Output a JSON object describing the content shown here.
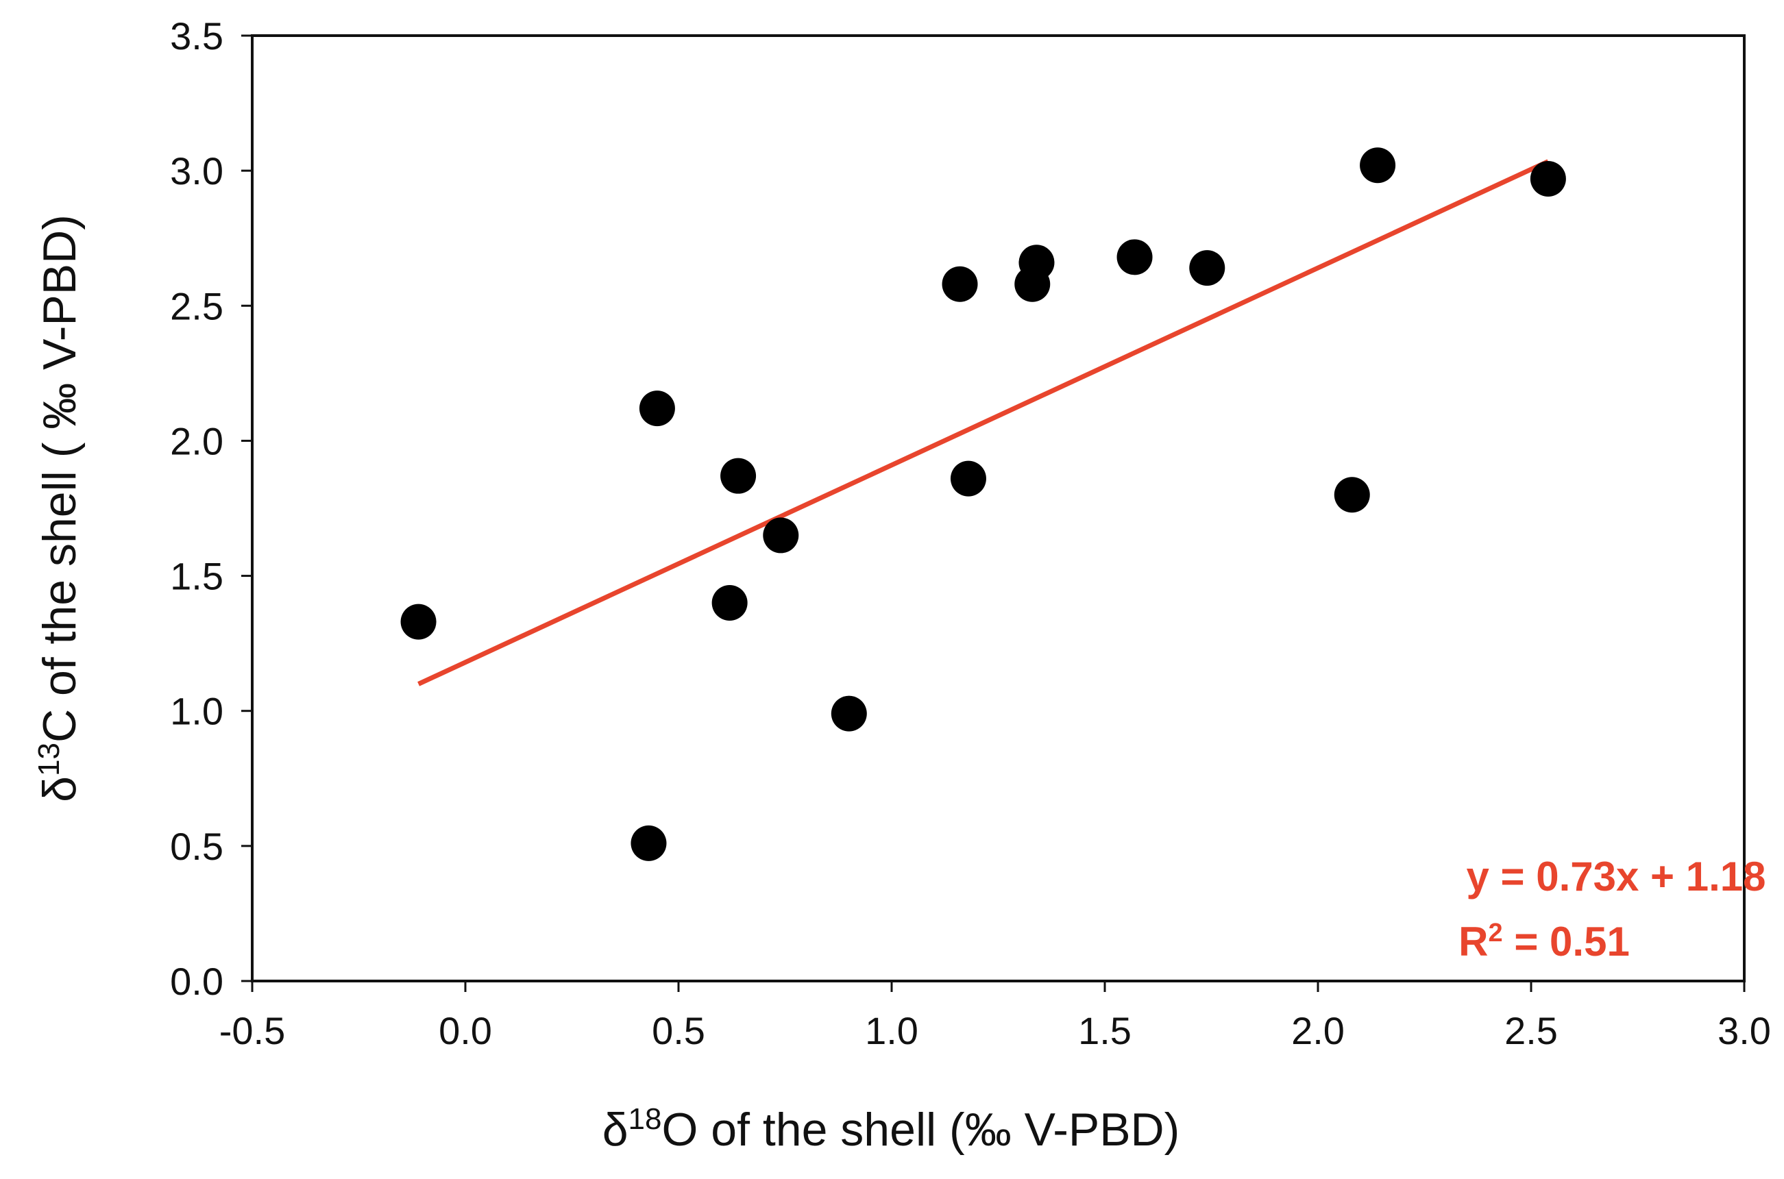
{
  "chart_data": {
    "type": "scatter",
    "xlabel": {
      "prefix": "δ",
      "sup": "18",
      "main": "O  of the shell (‰ V-PBD)"
    },
    "ylabel": {
      "prefix": "δ",
      "sup": "13",
      "main": "C of the shell ( ‰ V-PBD)"
    },
    "xlim": [
      -0.5,
      3.0
    ],
    "ylim": [
      0.0,
      3.5
    ],
    "xticks": [
      "-0.5",
      "0.0",
      "0.5",
      "1.0",
      "1.5",
      "2.0",
      "2.5",
      "3.0"
    ],
    "yticks": [
      "0.0",
      "0.5",
      "1.0",
      "1.5",
      "2.0",
      "2.5",
      "3.0",
      "3.5"
    ],
    "grid": false,
    "points": [
      {
        "x": -0.11,
        "y": 1.33
      },
      {
        "x": 0.43,
        "y": 0.51
      },
      {
        "x": 0.45,
        "y": 2.12
      },
      {
        "x": 0.62,
        "y": 1.4
      },
      {
        "x": 0.64,
        "y": 1.87
      },
      {
        "x": 0.74,
        "y": 1.65
      },
      {
        "x": 0.9,
        "y": 0.99
      },
      {
        "x": 1.16,
        "y": 2.58
      },
      {
        "x": 1.18,
        "y": 1.86
      },
      {
        "x": 1.33,
        "y": 2.58
      },
      {
        "x": 1.34,
        "y": 2.66
      },
      {
        "x": 1.57,
        "y": 2.68
      },
      {
        "x": 1.74,
        "y": 2.64
      },
      {
        "x": 2.08,
        "y": 1.8
      },
      {
        "x": 2.14,
        "y": 3.02
      },
      {
        "x": 2.54,
        "y": 2.97
      }
    ],
    "trendline": {
      "slope": 0.73,
      "intercept": 1.18,
      "x_from": -0.11,
      "x_to": 2.54,
      "color": "#e8452d"
    },
    "annotation": {
      "equation": "y = 0.73x + 1.18",
      "r2_prefix": "R",
      "r2_sup": "2",
      "r2_value": " = 0.51",
      "placement": "bottom-right"
    },
    "point_color": "#000000"
  }
}
